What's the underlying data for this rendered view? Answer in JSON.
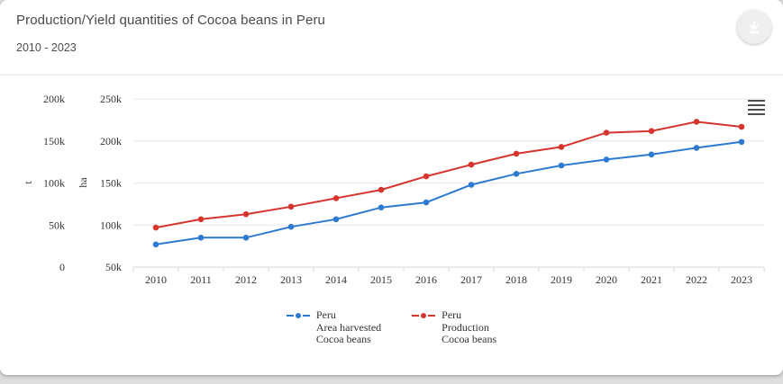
{
  "header": {
    "title": "Production/Yield quantities of Cocoa beans in Peru",
    "subtitle": "2010 - 2023"
  },
  "icons": {
    "download": "download-icon",
    "context_menu": "hamburger-menu-icon"
  },
  "colors": {
    "accent_teal": "#18b49a",
    "series_area_blue": "#2e7ad1",
    "series_production_red": "#d5352e",
    "chart_text": "#333333",
    "gridline": "#e7e7e7"
  },
  "chart_data": {
    "type": "line",
    "title": "Production/Yield quantities of Cocoa beans in Peru",
    "subtitle": "2010 - 2023",
    "x": [
      "2010",
      "2011",
      "2012",
      "2013",
      "2014",
      "2015",
      "2016",
      "2017",
      "2018",
      "2019",
      "2020",
      "2021",
      "2022",
      "2023"
    ],
    "series": [
      {
        "name": "Peru Area harvested Cocoa beans",
        "legend_lines": [
          "Peru",
          "Area harvested",
          "Cocoa beans"
        ],
        "color": "#2e7ad1",
        "axis": "ha",
        "unit": "ha",
        "values": [
          77000,
          85000,
          85000,
          98000,
          107000,
          121000,
          127000,
          148000,
          161000,
          171000,
          178000,
          184000,
          192000,
          199000
        ]
      },
      {
        "name": "Peru Production Cocoa beans",
        "legend_lines": [
          "Peru",
          "Production",
          "Cocoa beans"
        ],
        "color": "#d5352e",
        "axis": "t",
        "unit": "t",
        "values": [
          47000,
          57000,
          63000,
          72000,
          82000,
          92000,
          108000,
          122000,
          135000,
          143000,
          160000,
          162000,
          173000,
          167000
        ]
      }
    ],
    "y_axes": [
      {
        "id": "t",
        "title": "t",
        "min": 0,
        "max": 200000,
        "tick_interval": 50000,
        "ticks": [
          "0",
          "50k",
          "100k",
          "150k",
          "200k"
        ]
      },
      {
        "id": "ha",
        "title": "ha",
        "min": 50000,
        "max": 250000,
        "tick_interval": 50000,
        "ticks": [
          "50k",
          "100k",
          "150k",
          "200k",
          "250k"
        ]
      }
    ],
    "grid": true,
    "legend_position": "bottom"
  }
}
